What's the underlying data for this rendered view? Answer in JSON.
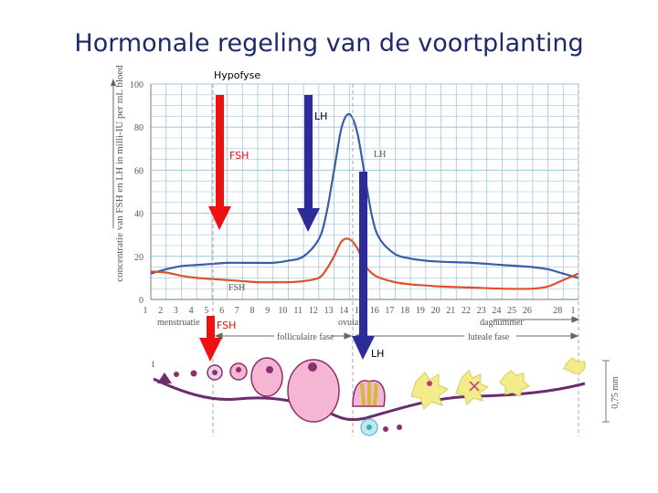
{
  "slide_title": "Hormonale regeling van de voortplanting",
  "annotations": {
    "hypofyse": "Hypofyse",
    "lh_upper": "LH",
    "fsh_upper": "FSH",
    "fsh_lower": "FSH",
    "lh_lower": "LH"
  },
  "colors": {
    "lh_curve": "#3a5da8",
    "fsh_curve": "#e0502a",
    "fsh_arrow": "#ee1111",
    "lh_arrow": "#2b2c9a",
    "grid": "#9fc6dd",
    "follicle_fill": "#f4b6d2",
    "follicle_stroke": "#8c2f6e",
    "uterus_line": "#6b2c6e",
    "corpus_luteum": "#f4ec8a"
  },
  "chart_data": {
    "type": "line",
    "ylabel": "concentratie van FSH en LH in milli-IU per mL bloed",
    "xlabel": "dagnummer",
    "ylim": [
      0,
      100
    ],
    "y_ticks": [
      "0",
      "20",
      "40",
      "60",
      "80",
      "100"
    ],
    "x_ticks": [
      "1",
      "2",
      "3",
      "4",
      "5",
      "6",
      "7",
      "8",
      "9",
      "10",
      "11",
      "12",
      "13",
      "14",
      "15",
      "16",
      "17",
      "18",
      "19",
      "20",
      "21",
      "22",
      "23",
      "24",
      "25",
      "26",
      "28",
      "1"
    ],
    "series_labels": {
      "lh": "LH",
      "fsh": "FSH"
    },
    "series": [
      {
        "name": "LH",
        "key": "lh",
        "x": [
          1,
          2,
          3,
          4,
          5,
          6,
          7,
          8,
          9,
          10,
          11,
          12,
          12.5,
          13,
          13.5,
          14,
          14.5,
          15,
          15.5,
          16,
          17,
          18,
          19,
          20,
          22,
          24,
          26,
          27,
          28,
          29
        ],
        "values": [
          12,
          14,
          15.5,
          16,
          16.5,
          17,
          17,
          17,
          17,
          18,
          20,
          28,
          40,
          60,
          80,
          86,
          78,
          58,
          38,
          28,
          21,
          19,
          18,
          17.5,
          17,
          16,
          15,
          14,
          12,
          10
        ]
      },
      {
        "name": "FSH",
        "key": "fsh",
        "x": [
          1,
          2,
          3,
          4,
          5,
          6,
          7,
          8,
          9,
          10,
          11,
          12,
          12.5,
          13,
          13.5,
          14,
          14.5,
          15,
          15.5,
          16,
          17,
          18,
          19,
          20,
          22,
          24,
          26,
          27,
          28,
          29
        ],
        "values": [
          13,
          12.5,
          11,
          10,
          9.5,
          9,
          8.5,
          8,
          8,
          8,
          8.5,
          10,
          14,
          20,
          27,
          28,
          24,
          16,
          12,
          10,
          8,
          7,
          6.5,
          6,
          5.5,
          5,
          5,
          6,
          9,
          12
        ]
      }
    ],
    "phase_labels": {
      "menstruation": "menstruatie",
      "follicular": "folliculaire fase",
      "ovulation": "ovulatie",
      "luteal": "luteale fase"
    },
    "scale_label": "0,75 mm",
    "ovary_label": "1",
    "grid": true
  }
}
